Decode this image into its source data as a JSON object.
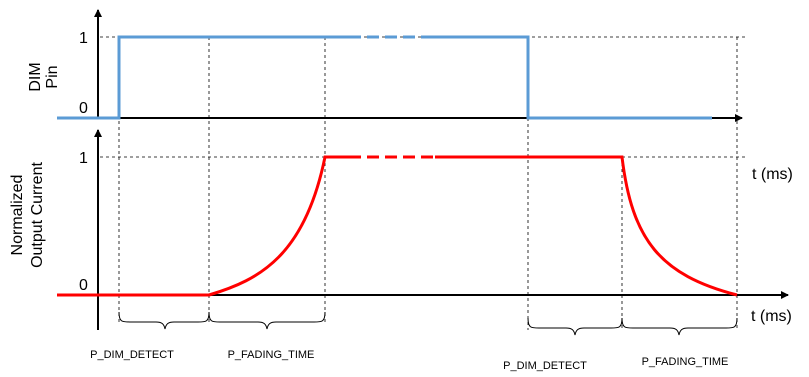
{
  "top_panel": {
    "ylabel_line1": "DIM",
    "ylabel_line2": "Pin",
    "tick_high": "1",
    "tick_low": "0",
    "xaxis_label": "t (ms)",
    "signal_color": "#5b9bd5"
  },
  "bottom_panel": {
    "ylabel_line1": "Normalized",
    "ylabel_line2": "Output Current",
    "tick_high": "1",
    "tick_low": "0",
    "xaxis_label": "t (ms)",
    "signal_color": "#ff0000"
  },
  "intervals": [
    {
      "label": "P_DIM_DETECT"
    },
    {
      "label": "P_FADING_TIME"
    },
    {
      "label": "P_DIM_DETECT"
    },
    {
      "label": "P_FADING_TIME"
    }
  ]
}
